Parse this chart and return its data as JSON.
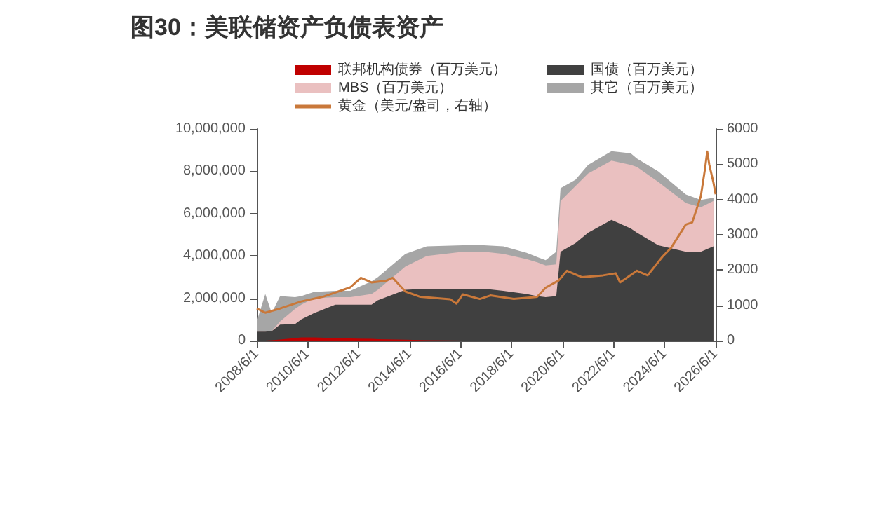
{
  "chart_data": {
    "type": "area",
    "title": "图30：美联储资产负债表资产",
    "stacked": true,
    "legend": "top",
    "grid": false,
    "marker": "none",
    "line_style": "solid",
    "x": [
      "2008-06",
      "2008-10",
      "2009-01",
      "2009-05",
      "2009-12",
      "2010-03",
      "2010-09",
      "2011-07",
      "2012-02",
      "2012-12",
      "2013-03",
      "2014-04",
      "2015-02",
      "2016-07",
      "2017-05",
      "2018-02",
      "2019-01",
      "2019-06",
      "2019-10",
      "2020-03",
      "2020-05",
      "2020-12",
      "2021-06",
      "2022-05",
      "2023-02",
      "2023-05",
      "2024-03",
      "2025-04",
      "2025-11",
      "2026-05"
    ],
    "xlim": [
      "2008-06-01",
      "2026-06-01"
    ],
    "xticks": [
      {
        "value": "2008-06-01",
        "label": "2008/6/1"
      },
      {
        "value": "2010-06-01",
        "label": "2010/6/1"
      },
      {
        "value": "2012-06-01",
        "label": "2012/6/1"
      },
      {
        "value": "2014-06-01",
        "label": "2014/6/1"
      },
      {
        "value": "2016-06-01",
        "label": "2016/6/1"
      },
      {
        "value": "2018-06-01",
        "label": "2018/6/1"
      },
      {
        "value": "2020-06-01",
        "label": "2020/6/1"
      },
      {
        "value": "2022-06-01",
        "label": "2022/6/1"
      },
      {
        "value": "2024-06-01",
        "label": "2024/6/1"
      },
      {
        "value": "2026-06-01",
        "label": "2026/6/1"
      }
    ],
    "ylim": [
      0,
      10000000
    ],
    "yticks": [
      0,
      {
        "value": 2000000,
        "label": "2,000,000"
      },
      {
        "value": 4000000,
        "label": "4,000,000"
      },
      {
        "value": 6000000,
        "label": "6,000,000"
      },
      {
        "value": 8000000,
        "label": "8,000,000"
      },
      {
        "value": 10000000,
        "label": "10,000,000"
      }
    ],
    "y2lim": [
      0,
      6000
    ],
    "y2ticks": [
      0,
      1000,
      2000,
      3000,
      4000,
      5000,
      6000
    ],
    "series": [
      {
        "name": "联邦机构债券（百万美元）",
        "color": "#c00000",
        "values": [
          0,
          0,
          20000,
          50000,
          120000,
          150000,
          150000,
          120000,
          100000,
          80000,
          70000,
          40000,
          20000,
          0,
          0,
          0,
          0,
          0,
          0,
          0,
          0,
          0,
          0,
          0,
          0,
          0,
          0,
          0,
          0,
          0
        ]
      },
      {
        "name": "国债（百万美元）",
        "color": "#404040",
        "values": [
          420000,
          420000,
          430000,
          700000,
          660000,
          850000,
          1150000,
          1580000,
          1600000,
          1620000,
          1830000,
          2360000,
          2430000,
          2450000,
          2450000,
          2350000,
          2200000,
          2100000,
          2050000,
          2100000,
          4200000,
          4600000,
          5100000,
          5700000,
          5300000,
          5100000,
          4500000,
          4200000,
          4200000,
          4450000
        ]
      },
      {
        "name": "MBS（百万美元）",
        "color": "#eac0c0",
        "values": [
          0,
          0,
          0,
          150000,
          720000,
          700000,
          700000,
          350000,
          350000,
          500000,
          500000,
          1100000,
          1550000,
          1750000,
          1750000,
          1750000,
          1650000,
          1600000,
          1500000,
          1500000,
          2400000,
          2700000,
          2800000,
          2800000,
          3000000,
          3100000,
          3000000,
          2300000,
          2100000,
          2150000
        ]
      },
      {
        "name": "其它（百万美元）",
        "color": "#a6a6a6",
        "values": [
          480000,
          1780000,
          850000,
          1200000,
          550000,
          400000,
          300000,
          300000,
          300000,
          600000,
          600000,
          600000,
          450000,
          300000,
          300000,
          350000,
          300000,
          250000,
          250000,
          600000,
          600000,
          300000,
          400000,
          450000,
          550000,
          400000,
          500000,
          400000,
          350000,
          150000
        ]
      },
      {
        "name": "黄金（美元/盎司，右轴）",
        "type": "line",
        "axis": "y2",
        "color": "#c9783a",
        "x": [
          "2008-06",
          "2008-10",
          "2009-05",
          "2010-03",
          "2011-01",
          "2012-02",
          "2012-07",
          "2012-12",
          "2013-07",
          "2013-10",
          "2014-04",
          "2014-11",
          "2016-01",
          "2016-04",
          "2016-07",
          "2017-03",
          "2017-08",
          "2018-07",
          "2019-06",
          "2019-10",
          "2020-04",
          "2020-08",
          "2021-03",
          "2022-01",
          "2022-07",
          "2022-09",
          "2023-05",
          "2023-10",
          "2024-05",
          "2024-09",
          "2025-04",
          "2025-07",
          "2025-11",
          "2026-01",
          "2026-02",
          "2026-03",
          "2026-05",
          "2026-06-01"
        ],
        "values": [
          910,
          790,
          910,
          1110,
          1240,
          1510,
          1780,
          1650,
          1700,
          1780,
          1390,
          1240,
          1170,
          1050,
          1310,
          1180,
          1280,
          1180,
          1240,
          1500,
          1700,
          1980,
          1800,
          1850,
          1910,
          1650,
          1980,
          1850,
          2380,
          2630,
          3290,
          3350,
          4090,
          4880,
          5360,
          5000,
          4480,
          4150
        ]
      }
    ]
  }
}
